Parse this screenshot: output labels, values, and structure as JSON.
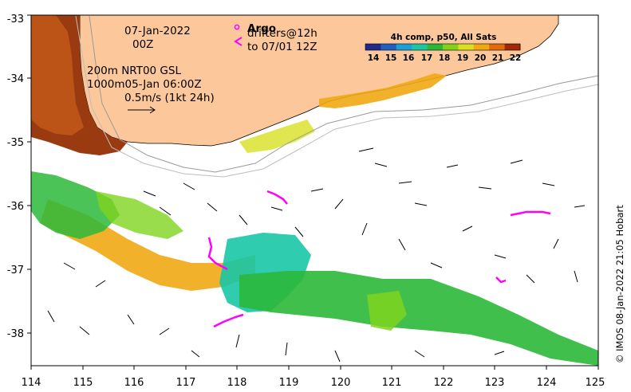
{
  "map": {
    "type": "sst_current_map",
    "region": "Southwest Australia",
    "lon_range": [
      114,
      125
    ],
    "lat_range": [
      -38.5,
      -33
    ],
    "x_ticks": [
      "114",
      "115",
      "116",
      "117",
      "118",
      "119",
      "120",
      "121",
      "122",
      "123",
      "124",
      "125"
    ],
    "y_ticks": [
      "-33",
      "-34",
      "-35",
      "-36",
      "-37",
      "-38"
    ]
  },
  "annotations": {
    "date": "07-Jan-2022",
    "hour": "00Z",
    "isobath_label": "200m NRT00 GSL",
    "isobath2_label": "1000m05-Jan 06:00Z",
    "scale_label": "0.5m/s (1kt 24h)",
    "argo_label": "Argo",
    "drifter_line1": "drifters@12h",
    "drifter_line2": "to 07/01 12Z"
  },
  "colorbar": {
    "title": "4h comp, p50, All Sats",
    "ticks": [
      "14",
      "15",
      "16",
      "17",
      "18",
      "19",
      "20",
      "21",
      "22"
    ],
    "colors": [
      "#1f2a8c",
      "#1f5fbf",
      "#1aa0d8",
      "#18c6a6",
      "#2bb83a",
      "#7fd31f",
      "#d8e020",
      "#f0a814",
      "#e06a10",
      "#a02808"
    ]
  },
  "credit": "© IMOS 08-Jan-2022 21:05 Hobart"
}
